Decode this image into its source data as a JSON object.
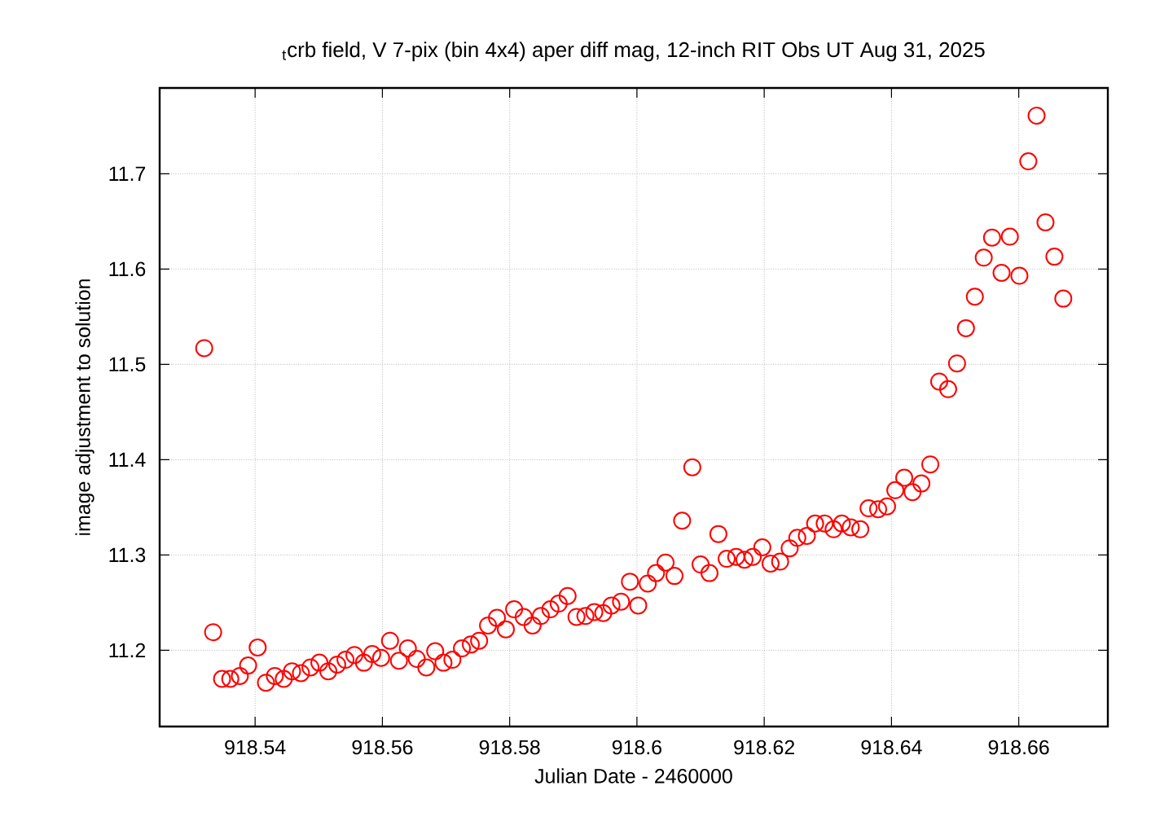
{
  "chart_data": {
    "type": "scatter",
    "title": "$_{t}$crb field, V 7-pix (bin 4x4) aper diff mag,  12-inch RIT Obs UT Aug 31, 2025",
    "xlabel": "Julian Date - 2460000",
    "ylabel": "image adjustment to solution",
    "xlim": [
      918.525,
      918.674
    ],
    "ylim": [
      11.12,
      11.79
    ],
    "xticks": [
      918.54,
      918.56,
      918.58,
      918.6,
      918.62,
      918.64,
      918.66
    ],
    "yticks": [
      11.2,
      11.3,
      11.4,
      11.5,
      11.6,
      11.7
    ],
    "grid": true,
    "marker": "circle",
    "series": [
      {
        "color": "#ff0000",
        "x": [
          918.532,
          918.5334,
          918.5348,
          918.5361,
          918.5376,
          918.5389,
          918.5404,
          918.5417,
          918.5431,
          918.5445,
          918.5458,
          918.5472,
          918.5487,
          918.5501,
          918.5515,
          918.5529,
          918.5542,
          918.5556,
          918.5571,
          918.5584,
          918.5598,
          918.5612,
          918.5626,
          918.564,
          918.5654,
          918.5669,
          918.5683,
          918.5696,
          918.571,
          918.5725,
          918.5739,
          918.5752,
          918.5766,
          918.578,
          918.5794,
          918.5807,
          918.5822,
          918.5836,
          918.5849,
          918.5864,
          918.5877,
          918.5891,
          918.5905,
          918.5919,
          918.5933,
          918.5947,
          918.596,
          918.5975,
          918.5989,
          918.6002,
          918.6017,
          918.603,
          918.6045,
          918.6059,
          918.6071,
          918.6087,
          918.61,
          918.6114,
          918.6128,
          918.6141,
          918.6156,
          918.6169,
          918.6182,
          918.6197,
          918.621,
          918.6225,
          918.624,
          918.6252,
          918.6267,
          918.628,
          918.6295,
          918.6309,
          918.6322,
          918.6336,
          918.6351,
          918.6364,
          918.6379,
          918.6393,
          918.6406,
          918.642,
          918.6433,
          918.6447,
          918.6461,
          918.6475,
          918.6489,
          918.6503,
          918.6517,
          918.6531,
          918.6545,
          918.6558,
          918.6573,
          918.6586,
          918.6601,
          918.6615,
          918.6628,
          918.6642,
          918.6656,
          918.667
        ],
        "values": [
          11.517,
          11.219,
          11.17,
          11.17,
          11.173,
          11.184,
          11.203,
          11.166,
          11.173,
          11.17,
          11.178,
          11.176,
          11.182,
          11.187,
          11.178,
          11.185,
          11.19,
          11.195,
          11.187,
          11.196,
          11.192,
          11.21,
          11.189,
          11.202,
          11.191,
          11.182,
          11.199,
          11.187,
          11.19,
          11.202,
          11.206,
          11.21,
          11.226,
          11.234,
          11.222,
          11.243,
          11.235,
          11.226,
          11.236,
          11.243,
          11.249,
          11.257,
          11.235,
          11.236,
          11.24,
          11.239,
          11.247,
          11.251,
          11.272,
          11.247,
          11.27,
          11.281,
          11.292,
          11.278,
          11.336,
          11.392,
          11.29,
          11.281,
          11.322,
          11.296,
          11.298,
          11.295,
          11.298,
          11.308,
          11.291,
          11.293,
          11.307,
          11.318,
          11.32,
          11.333,
          11.333,
          11.327,
          11.333,
          11.329,
          11.327,
          11.349,
          11.348,
          11.351,
          11.368,
          11.381,
          11.366,
          11.375,
          11.395,
          11.482,
          11.474,
          11.501,
          11.538,
          11.571,
          11.612,
          11.633,
          11.596,
          11.634,
          11.593,
          11.713,
          11.761,
          11.649,
          11.613,
          11.569
        ]
      }
    ]
  }
}
